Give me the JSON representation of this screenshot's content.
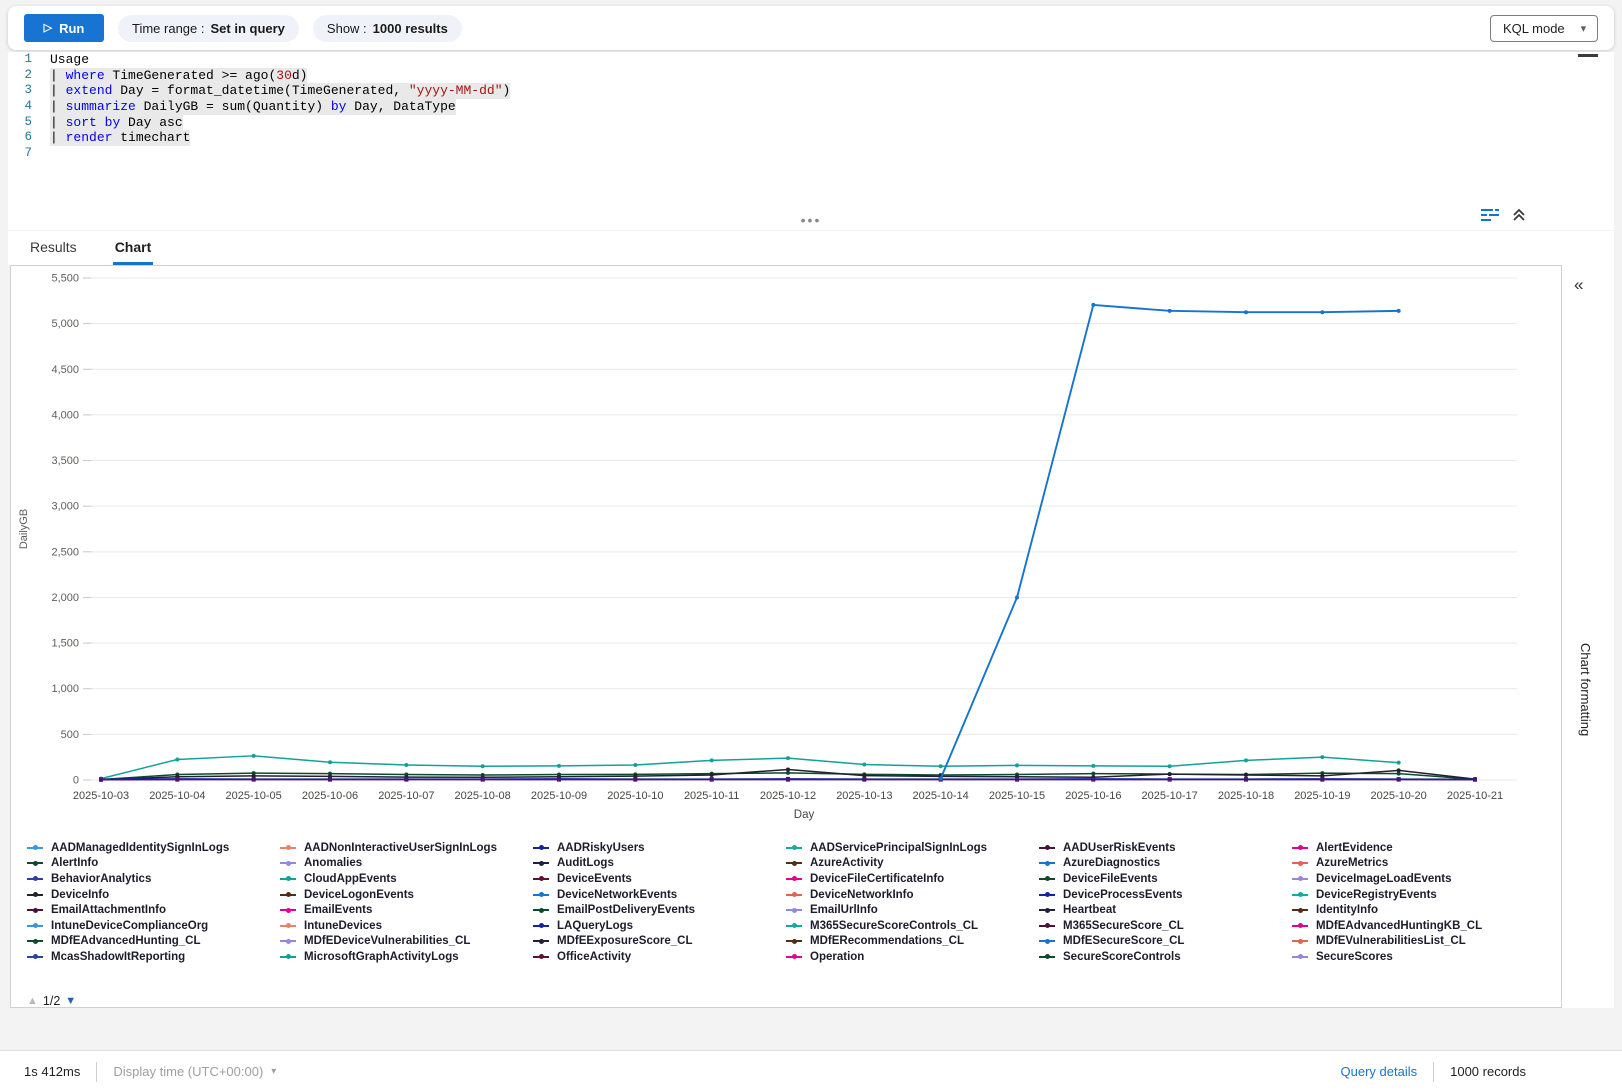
{
  "toolbar": {
    "run_label": "Run",
    "time_range_label": "Time range :",
    "time_range_value": "Set in query",
    "show_label": "Show :",
    "show_value": "1000 results",
    "mode_select_value": "KQL mode"
  },
  "editor": {
    "lines": [
      {
        "no": "1",
        "selected": false,
        "tokens": [
          [
            "t",
            "Usage"
          ]
        ]
      },
      {
        "no": "2",
        "selected": true,
        "tokens": [
          [
            "t",
            "| "
          ],
          [
            "k",
            "where"
          ],
          [
            "t",
            " TimeGenerated >= ago("
          ],
          [
            "n",
            "30"
          ],
          [
            "t",
            "d)"
          ]
        ]
      },
      {
        "no": "3",
        "selected": true,
        "tokens": [
          [
            "t",
            "| "
          ],
          [
            "k",
            "extend"
          ],
          [
            "t",
            " Day = format_datetime(TimeGenerated, "
          ],
          [
            "s",
            "\"yyyy-MM-dd\""
          ],
          [
            "t",
            ")"
          ]
        ]
      },
      {
        "no": "4",
        "selected": true,
        "tokens": [
          [
            "t",
            "| "
          ],
          [
            "k",
            "summarize"
          ],
          [
            "t",
            " DailyGB = sum(Quantity) "
          ],
          [
            "k",
            "by"
          ],
          [
            "t",
            " Day, DataType"
          ]
        ]
      },
      {
        "no": "5",
        "selected": true,
        "tokens": [
          [
            "t",
            "| "
          ],
          [
            "k",
            "sort"
          ],
          [
            "t",
            " "
          ],
          [
            "k",
            "by"
          ],
          [
            "t",
            " Day asc"
          ]
        ]
      },
      {
        "no": "6",
        "selected": true,
        "tokens": [
          [
            "t",
            "| "
          ],
          [
            "k",
            "render"
          ],
          [
            "t",
            " timechart"
          ]
        ]
      },
      {
        "no": "7",
        "selected": false,
        "tokens": []
      }
    ]
  },
  "tabs": {
    "results": "Results",
    "chart": "Chart"
  },
  "chart_data": {
    "type": "line",
    "title": "",
    "xlabel": "Day",
    "ylabel": "DailyGB",
    "ylim": [
      0,
      5500
    ],
    "grid": "horizontal",
    "y_ticks": [
      "0",
      "500",
      "1,000",
      "1,500",
      "2,000",
      "2,500",
      "3,000",
      "3,500",
      "4,000",
      "4,500",
      "5,000",
      "5,500"
    ],
    "categories": [
      "2025-10-03",
      "2025-10-04",
      "2025-10-05",
      "2025-10-06",
      "2025-10-07",
      "2025-10-08",
      "2025-10-09",
      "2025-10-10",
      "2025-10-11",
      "2025-10-12",
      "2025-10-13",
      "2025-10-14",
      "2025-10-15",
      "2025-10-16",
      "2025-10-17",
      "2025-10-18",
      "2025-10-19",
      "2025-10-20",
      "2025-10-21"
    ],
    "series": [
      {
        "name": "teal-series",
        "color": "#12a19a",
        "marker": "circle",
        "start_index": 0,
        "values": [
          15,
          225,
          265,
          195,
          165,
          150,
          155,
          165,
          215,
          240,
          170,
          150,
          160,
          155,
          150,
          215,
          250,
          190
        ]
      },
      {
        "name": "dark-green-series",
        "color": "#0d4a2c",
        "marker": "circle",
        "start_index": 0,
        "values": [
          5,
          60,
          75,
          70,
          60,
          55,
          60,
          62,
          70,
          78,
          62,
          55,
          60,
          70,
          65,
          60,
          75,
          70,
          8
        ]
      },
      {
        "name": "black-series",
        "color": "#232129",
        "marker": "circle",
        "start_index": 0,
        "values": [
          2,
          35,
          45,
          40,
          32,
          30,
          35,
          42,
          55,
          115,
          48,
          40,
          35,
          30,
          65,
          55,
          45,
          105,
          10
        ]
      },
      {
        "name": "navy-series",
        "color": "#12239e",
        "marker": "square",
        "start_index": 0,
        "values": [
          8,
          12,
          10,
          10,
          10,
          10,
          12,
          10,
          10,
          12,
          10,
          10,
          10,
          12,
          10,
          10,
          12,
          10,
          8
        ]
      },
      {
        "name": "purple-flat-series",
        "color": "#4c1277",
        "marker": "square",
        "start_index": 0,
        "values": [
          3,
          4,
          4,
          4,
          4,
          4,
          4,
          4,
          4,
          4,
          4,
          4,
          4,
          4,
          4,
          4,
          4,
          4,
          3
        ]
      },
      {
        "name": "blue-spike-series",
        "color": "#1574d0",
        "marker": "circle",
        "start_index": 11,
        "values": [
          15,
          2000,
          5205,
          5140,
          5125,
          5125,
          5140
        ]
      }
    ]
  },
  "legend": {
    "page": "1/2",
    "items": [
      {
        "label": "AADManagedIdentitySignInLogs",
        "color": "#3b97dd"
      },
      {
        "label": "AADNonInteractiveUserSignInLogs",
        "color": "#e8826c"
      },
      {
        "label": "AADRiskyUsers",
        "color": "#12239e"
      },
      {
        "label": "AADServicePrincipalSignInLogs",
        "color": "#16a9a3"
      },
      {
        "label": "AADUserRiskEvents",
        "color": "#47133d"
      },
      {
        "label": "AlertEvidence",
        "color": "#e3008c"
      },
      {
        "label": "AlertInfo",
        "color": "#0d4a2c"
      },
      {
        "label": "Anomalies",
        "color": "#9287e2"
      },
      {
        "label": "AuditLogs",
        "color": "#1f2138"
      },
      {
        "label": "AzureActivity",
        "color": "#502d16"
      },
      {
        "label": "AzureDiagnostics",
        "color": "#1574d0"
      },
      {
        "label": "AzureMetrics",
        "color": "#e3614f"
      },
      {
        "label": "BehaviorAnalytics",
        "color": "#2b3fad"
      },
      {
        "label": "CloudAppEvents",
        "color": "#12a19a"
      },
      {
        "label": "DeviceEvents",
        "color": "#640c33"
      },
      {
        "label": "DeviceFileCertificateInfo",
        "color": "#e3008c"
      },
      {
        "label": "DeviceFileEvents",
        "color": "#0d4a2c"
      },
      {
        "label": "DeviceImageLoadEvents",
        "color": "#9287e2"
      },
      {
        "label": "DeviceInfo",
        "color": "#232129"
      },
      {
        "label": "DeviceLogonEvents",
        "color": "#502d16"
      },
      {
        "label": "DeviceNetworkEvents",
        "color": "#1574d0"
      },
      {
        "label": "DeviceNetworkInfo",
        "color": "#e3614f"
      },
      {
        "label": "DeviceProcessEvents",
        "color": "#12239e"
      },
      {
        "label": "DeviceRegistryEvents",
        "color": "#16a9a3"
      },
      {
        "label": "EmailAttachmentInfo",
        "color": "#47133d"
      },
      {
        "label": "EmailEvents",
        "color": "#e3008c"
      },
      {
        "label": "EmailPostDeliveryEvents",
        "color": "#0d4a2c"
      },
      {
        "label": "EmailUrlInfo",
        "color": "#9287e2"
      },
      {
        "label": "Heartbeat",
        "color": "#1f2138"
      },
      {
        "label": "IdentityInfo",
        "color": "#502d16"
      },
      {
        "label": "IntuneDeviceComplianceOrg",
        "color": "#3b97dd"
      },
      {
        "label": "IntuneDevices",
        "color": "#e8826c"
      },
      {
        "label": "LAQueryLogs",
        "color": "#12239e"
      },
      {
        "label": "M365SecureScoreControls_CL",
        "color": "#16a9a3"
      },
      {
        "label": "M365SecureScore_CL",
        "color": "#47133d"
      },
      {
        "label": "MDfEAdvancedHuntingKB_CL",
        "color": "#e3008c"
      },
      {
        "label": "MDfEAdvancedHunting_CL",
        "color": "#0d4a2c"
      },
      {
        "label": "MDfEDeviceVulnerabilities_CL",
        "color": "#9287e2"
      },
      {
        "label": "MDfEExposureScore_CL",
        "color": "#1f2138"
      },
      {
        "label": "MDfERecommendations_CL",
        "color": "#502d16"
      },
      {
        "label": "MDfESecureScore_CL",
        "color": "#1574d0"
      },
      {
        "label": "MDfEVulnerabilitiesList_CL",
        "color": "#e3614f"
      },
      {
        "label": "McasShadowItReporting",
        "color": "#2b3fad"
      },
      {
        "label": "MicrosoftGraphActivityLogs",
        "color": "#12a19a"
      },
      {
        "label": "OfficeActivity",
        "color": "#640c33"
      },
      {
        "label": "Operation",
        "color": "#e3008c"
      },
      {
        "label": "SecureScoreControls",
        "color": "#0d4a2c"
      },
      {
        "label": "SecureScores",
        "color": "#9287e2"
      }
    ]
  },
  "panel": {
    "chart_formatting_label": "Chart formatting",
    "collapse_glyph": "«"
  },
  "statusbar": {
    "duration": "1s 412ms",
    "display_time": "Display time (UTC+00:00)",
    "query_details": "Query details",
    "records": "1000 records"
  },
  "colors": {
    "accent": "#1574d0",
    "run_button": "#1874d2",
    "pill_bg": "#eff3f9",
    "grid_line": "#e9e9e9"
  }
}
